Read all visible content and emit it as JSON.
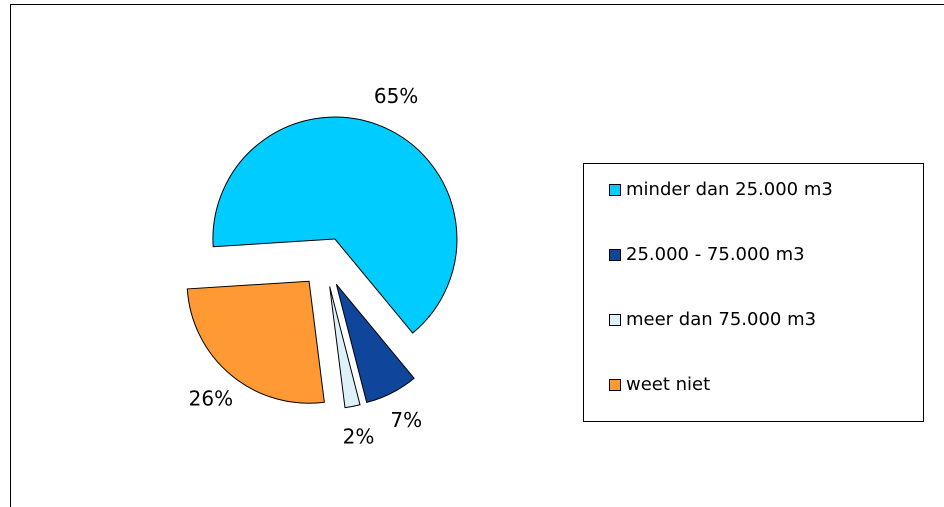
{
  "chart_data": {
    "type": "pie",
    "categories": [
      "minder dan 25.000 m3",
      "25.000 - 75.000 m3",
      "meer dan 75.000 m3",
      "weet niet"
    ],
    "values": [
      65,
      7,
      2,
      26
    ],
    "value_labels": [
      "65%",
      "7%",
      "2%",
      "26%"
    ],
    "colors": [
      "#00ccff",
      "#0f469c",
      "#dff1f8",
      "#ff9933"
    ],
    "exploded": true,
    "legend": "right"
  }
}
